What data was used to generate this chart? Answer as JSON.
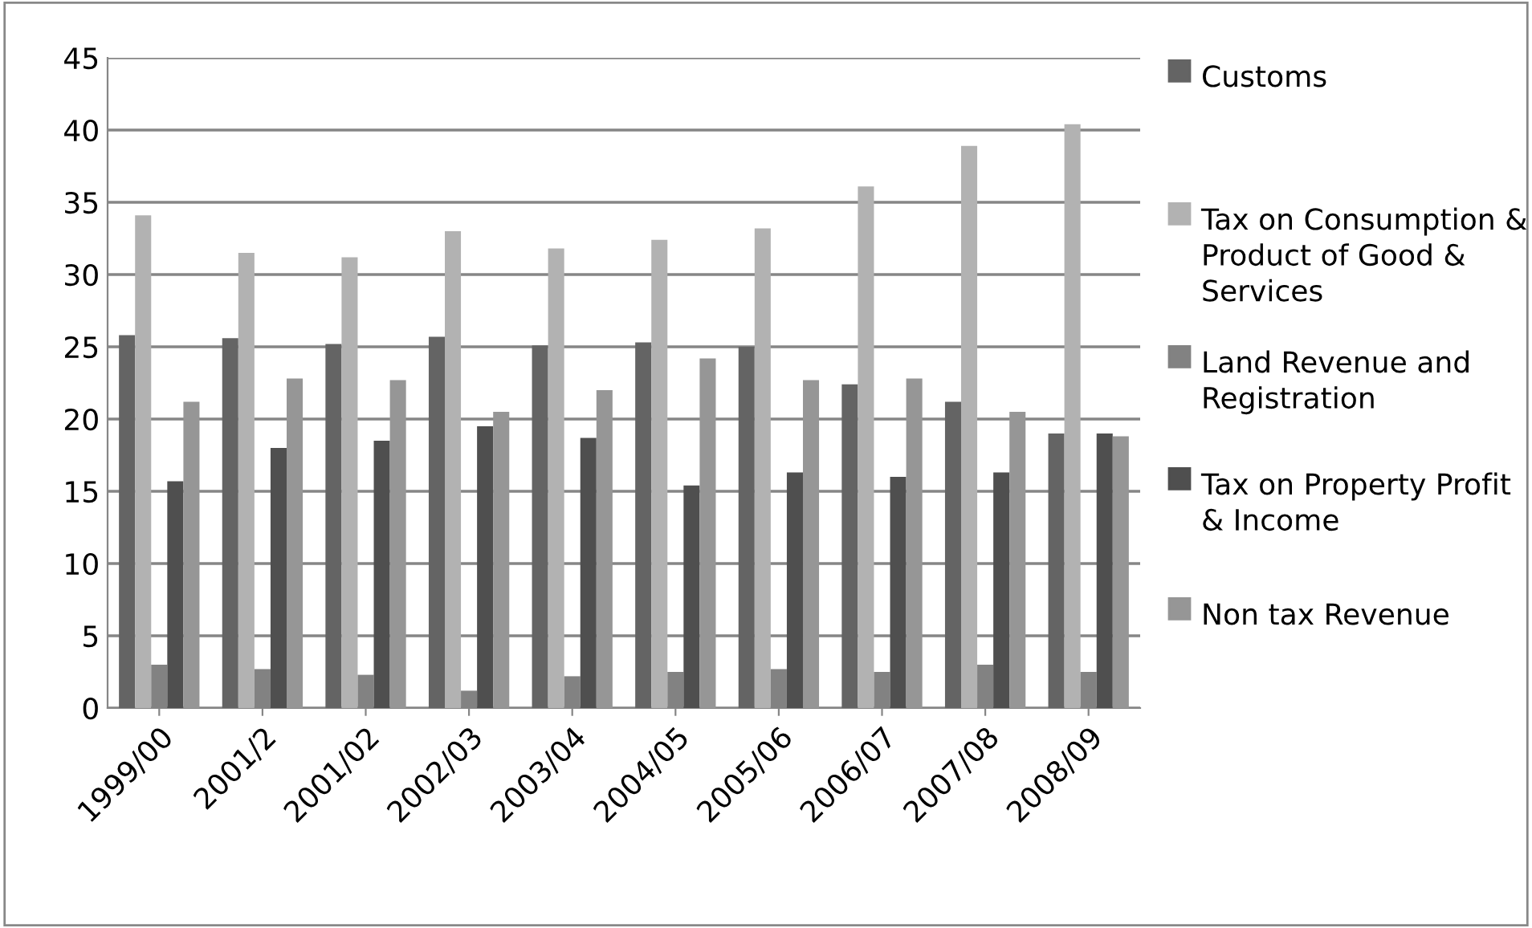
{
  "chart_data": {
    "type": "bar",
    "categories": [
      "1999/00",
      "2001/2",
      "2001/02",
      "2002/03",
      "2003/04",
      "2004/05",
      "2005/06",
      "2006/07",
      "2007/08",
      "2008/09"
    ],
    "series": [
      {
        "name": "Customs",
        "color": "#646464",
        "values": [
          25.8,
          25.6,
          25.2,
          25.7,
          25.1,
          25.3,
          25.0,
          22.4,
          21.2,
          19.0
        ]
      },
      {
        "name": "Tax on Consumption & Product of Good & Services",
        "color": "#b2b2b2",
        "values": [
          34.1,
          31.5,
          31.2,
          33.0,
          31.8,
          32.4,
          33.2,
          36.1,
          38.9,
          40.4
        ]
      },
      {
        "name": "Land Revenue and Registration",
        "color": "#828282",
        "values": [
          3.0,
          2.7,
          2.3,
          1.2,
          2.2,
          2.5,
          2.7,
          2.5,
          3.0,
          2.5
        ]
      },
      {
        "name": "Tax on Property Profit & Income",
        "color": "#4f4f4f",
        "values": [
          15.7,
          18.0,
          18.5,
          19.5,
          18.7,
          15.4,
          16.3,
          16.0,
          16.3,
          19.0
        ]
      },
      {
        "name": "Non tax Revenue",
        "color": "#969696",
        "values": [
          21.2,
          22.8,
          22.7,
          20.5,
          22.0,
          24.2,
          22.7,
          22.8,
          20.5,
          18.8
        ]
      }
    ],
    "ylim": [
      0,
      45
    ],
    "yticks": [
      0,
      5,
      10,
      15,
      20,
      25,
      30,
      35,
      40,
      45
    ],
    "grid": "y",
    "legend": "right"
  }
}
